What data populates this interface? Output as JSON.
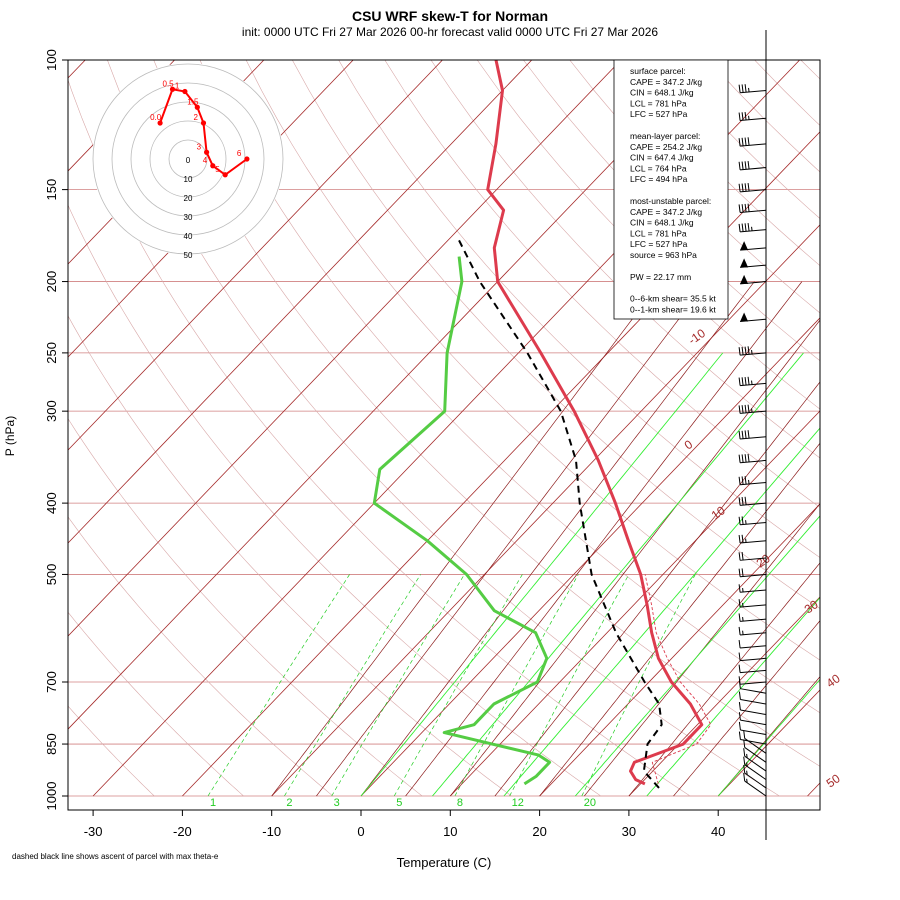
{
  "title": "CSU WRF skew-T for Norman",
  "subtitle": "init: 0000 UTC Fri 27 Mar 2026     00-hr forecast valid 0000 UTC Fri 27 Mar 2026",
  "footnote": "dashed black line shows ascent of parcel with max theta-e",
  "chart_data": {
    "type": "line",
    "xlabel": "Temperature (C)",
    "ylabel": "P (hPa)",
    "x_ticks": [
      -30,
      -20,
      -10,
      0,
      10,
      20,
      30,
      40
    ],
    "y_ticks": [
      100,
      150,
      200,
      250,
      300,
      400,
      500,
      700,
      850,
      1000
    ],
    "y_scale": "log",
    "xlim": [
      -33,
      45
    ],
    "ylim": [
      1000,
      100
    ],
    "isotherm_labels": [
      -10,
      0,
      10,
      20,
      30,
      40,
      50
    ],
    "mixing_ratio_labels": [
      "1",
      "2",
      "3",
      "5",
      "8",
      "12",
      "20"
    ],
    "series": [
      {
        "id": "temperature",
        "color": "#dd3b4d",
        "points": [
          [
            963,
            30.5
          ],
          [
            950,
            29.0
          ],
          [
            925,
            27.5
          ],
          [
            900,
            27.0
          ],
          [
            850,
            30.5
          ],
          [
            800,
            30.5
          ],
          [
            750,
            27.0
          ],
          [
            700,
            22.5
          ],
          [
            650,
            18.5
          ],
          [
            600,
            15.0
          ],
          [
            550,
            11.5
          ],
          [
            500,
            7.5
          ],
          [
            450,
            2.5
          ],
          [
            400,
            -3.0
          ],
          [
            350,
            -9.5
          ],
          [
            300,
            -17.5
          ],
          [
            250,
            -27.5
          ],
          [
            200,
            -40.0
          ],
          [
            180,
            -44.0
          ],
          [
            160,
            -47.0
          ],
          [
            150,
            -51.0
          ],
          [
            130,
            -55.0
          ],
          [
            110,
            -60.0
          ],
          [
            100,
            -64.0
          ]
        ]
      },
      {
        "id": "dewpoint",
        "color": "#55cc44",
        "points": [
          [
            963,
            17.0
          ],
          [
            940,
            17.5
          ],
          [
            900,
            17.5
          ],
          [
            880,
            15.5
          ],
          [
            820,
            2.5
          ],
          [
            800,
            5.0
          ],
          [
            750,
            5.0
          ],
          [
            700,
            7.5
          ],
          [
            650,
            6.0
          ],
          [
            600,
            2.0
          ],
          [
            560,
            -5.0
          ],
          [
            500,
            -12.0
          ],
          [
            450,
            -20.0
          ],
          [
            400,
            -30.0
          ],
          [
            360,
            -33.0
          ],
          [
            300,
            -32.0
          ],
          [
            250,
            -38.0
          ],
          [
            200,
            -44.0
          ],
          [
            185,
            -47.0
          ]
        ]
      },
      {
        "id": "parcel",
        "color": "#000000",
        "dashed": true,
        "points": [
          [
            975,
            32.5
          ],
          [
            925,
            29.0
          ],
          [
            850,
            26.5
          ],
          [
            800,
            26.0
          ],
          [
            750,
            23.5
          ],
          [
            700,
            19.5
          ],
          [
            600,
            11.0
          ],
          [
            500,
            2.0
          ],
          [
            400,
            -7.0
          ],
          [
            350,
            -12.0
          ],
          [
            300,
            -19.0
          ],
          [
            250,
            -29.0
          ],
          [
            200,
            -42.0
          ],
          [
            175,
            -49.0
          ]
        ]
      },
      {
        "id": "virtual-temperature",
        "color": "#dd3b4d",
        "thin_dashed": true,
        "points": [
          [
            963,
            32.0
          ],
          [
            900,
            29.0
          ],
          [
            850,
            32.0
          ],
          [
            800,
            31.5
          ],
          [
            750,
            28.0
          ],
          [
            700,
            23.5
          ],
          [
            650,
            19.5
          ],
          [
            600,
            15.5
          ],
          [
            550,
            12.0
          ],
          [
            500,
            8.0
          ]
        ]
      }
    ],
    "hodograph": {
      "ring_labels": [
        "0",
        "10",
        "20",
        "30",
        "40",
        "50"
      ],
      "point_labels": [
        "0.0",
        "0.5",
        "1",
        "1.5",
        "2",
        "3",
        "4",
        "5",
        "6"
      ],
      "u": [
        -4.5,
        -2.5,
        -0.5,
        1.5,
        2.5,
        3.0,
        4.0,
        6.0,
        9.5
      ],
      "v": [
        8.0,
        15.5,
        15.0,
        11.5,
        8.0,
        1.5,
        -1.5,
        -3.5,
        0.0
      ]
    },
    "wind_barb_levels_hpa": [
      110,
      120,
      130,
      140,
      150,
      160,
      170,
      180,
      190,
      200,
      225,
      250,
      275,
      300,
      325,
      350,
      375,
      400,
      425,
      450,
      475,
      500,
      525,
      550,
      575,
      600,
      625,
      650,
      675,
      700,
      725,
      750,
      775,
      800,
      825,
      850,
      875,
      900,
      925,
      950,
      975,
      1000
    ],
    "wind_barb_speeds_kt": [
      35,
      35,
      40,
      40,
      40,
      40,
      45,
      50,
      55,
      55,
      50,
      45,
      45,
      45,
      40,
      40,
      35,
      30,
      25,
      25,
      20,
      20,
      15,
      15,
      15,
      15,
      10,
      10,
      10,
      10,
      10,
      10,
      10,
      10,
      10,
      10,
      10,
      10,
      15,
      15,
      15,
      15
    ]
  },
  "stats": {
    "lines": [
      {
        "label": "surface parcel:"
      },
      {
        "label": "CAPE = 347.2 J/kg"
      },
      {
        "label": "CIN = 648.1 J/kg"
      },
      {
        "label": "LCL = 781 hPa"
      },
      {
        "label": "LFC = 527 hPa"
      },
      {
        "label": "mean-layer parcel:",
        "gap": true
      },
      {
        "label": "CAPE = 254.2 J/kg"
      },
      {
        "label": "CIN = 647.4 J/kg"
      },
      {
        "label": "LCL = 764 hPa"
      },
      {
        "label": "LFC = 494 hPa"
      },
      {
        "label": "most-unstable parcel:",
        "gap": true
      },
      {
        "label": "CAPE = 347.2 J/kg"
      },
      {
        "label": "CIN = 648.1 J/kg"
      },
      {
        "label": "LCL = 781 hPa"
      },
      {
        "label": "LFC = 527 hPa"
      },
      {
        "label": "source = 963 hPa"
      },
      {
        "label": "PW =  22.17 mm",
        "gap": true
      },
      {
        "label": "0--6-km shear= 35.5 kt",
        "gap": true
      },
      {
        "label": "0--1-km shear= 19.6 kt"
      }
    ]
  },
  "colors": {
    "isotherm": "#a52a2a",
    "isobar": "#d08080",
    "mixing_ratio": "#22cc22",
    "dry_adiabat": "#d8a8a8",
    "temperature": "#dd3b4d",
    "dewpoint": "#55cc44",
    "parcel": "#000000",
    "hodograph": "#ff0000",
    "hodo_ring": "#bbbbbb"
  }
}
